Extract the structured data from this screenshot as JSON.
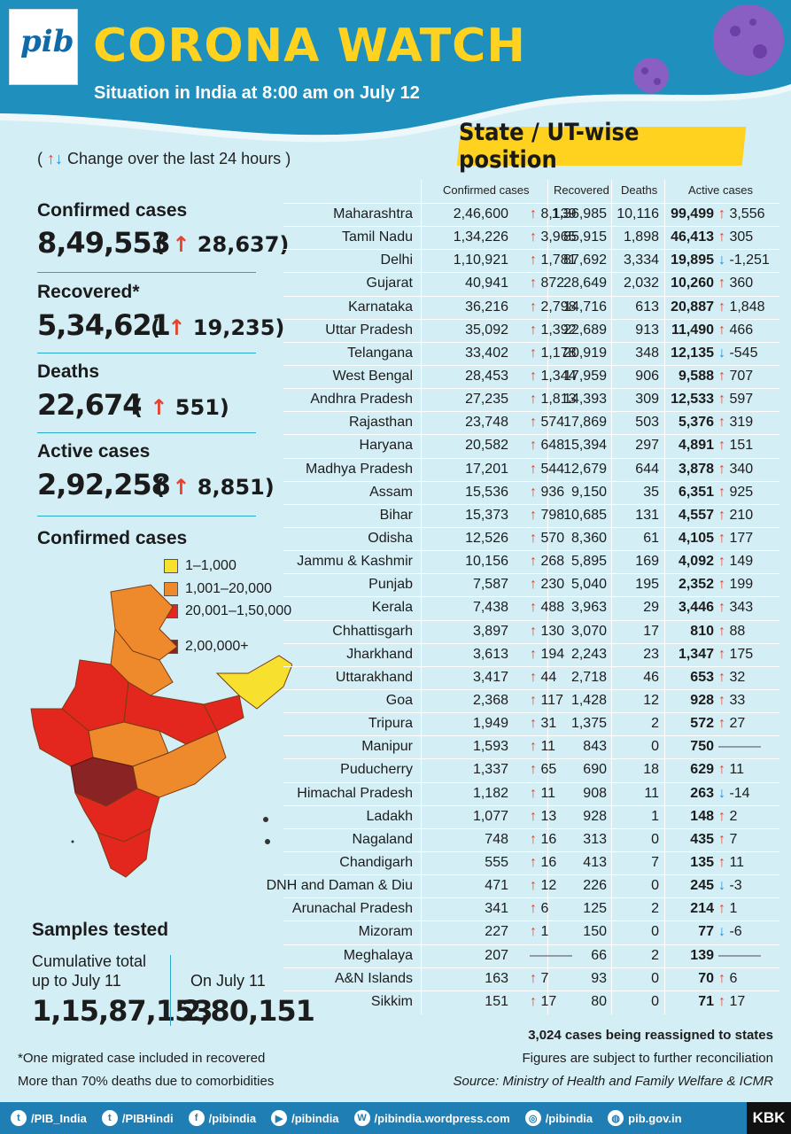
{
  "header": {
    "logo_text": "pib",
    "title": "CORONA WATCH",
    "subtitle": "Situation in India at 8:00 am on July 12",
    "section_banner": "State / UT-wise position"
  },
  "legend_change": {
    "open": "(",
    "up_glyph": "↑",
    "down_glyph": "↓",
    "text": "Change over the last 24 hours",
    "close": ")"
  },
  "summary": {
    "confirmed": {
      "label": "Confirmed cases",
      "value": "8,49,553",
      "change": "28,637"
    },
    "recovered": {
      "label": "Recovered*",
      "value": "5,34,621",
      "change": "19,235"
    },
    "deaths": {
      "label": "Deaths",
      "value": "22,674",
      "change": "551"
    },
    "active": {
      "label": "Active cases",
      "value": "2,92,258",
      "change": "8,851"
    }
  },
  "map_legend": {
    "title": "Confirmed cases",
    "items": [
      {
        "label": "1–1,000",
        "color": "#f7e02e"
      },
      {
        "label": "1,001–20,000",
        "color": "#ef8a2c"
      },
      {
        "label": "20,001–1,50,000",
        "color": "#e3271f"
      },
      {
        "label": "2,00,000+",
        "color": "#8a2323"
      }
    ]
  },
  "samples": {
    "title": "Samples tested",
    "cumulative_label_1": "Cumulative total",
    "cumulative_label_2": "up to July 11",
    "cumulative_value": "1,15,87,153",
    "day_label": "On July 11",
    "day_value": "2,80,151"
  },
  "table": {
    "headers": {
      "confirmed": "Confirmed cases",
      "recovered": "Recovered",
      "deaths": "Deaths",
      "active": "Active cases"
    },
    "rows": [
      {
        "state": "Maharashtra",
        "confirmed": "2,46,600",
        "conf_dir": "up",
        "conf_change": "8,139",
        "recovered": "1,36,985",
        "deaths": "10,116",
        "active": "99,499",
        "act_dir": "up",
        "act_change": "3,556"
      },
      {
        "state": "Tamil Nadu",
        "confirmed": "1,34,226",
        "conf_dir": "up",
        "conf_change": "3,965",
        "recovered": "85,915",
        "deaths": "1,898",
        "active": "46,413",
        "act_dir": "up",
        "act_change": "305"
      },
      {
        "state": "Delhi",
        "confirmed": "1,10,921",
        "conf_dir": "up",
        "conf_change": "1,781",
        "recovered": "87,692",
        "deaths": "3,334",
        "active": "19,895",
        "act_dir": "down",
        "act_change": "-1,251"
      },
      {
        "state": "Gujarat",
        "confirmed": "40,941",
        "conf_dir": "up",
        "conf_change": "872",
        "recovered": "28,649",
        "deaths": "2,032",
        "active": "10,260",
        "act_dir": "up",
        "act_change": "360"
      },
      {
        "state": "Karnataka",
        "confirmed": "36,216",
        "conf_dir": "up",
        "conf_change": "2,798",
        "recovered": "14,716",
        "deaths": "613",
        "active": "20,887",
        "act_dir": "up",
        "act_change": "1,848"
      },
      {
        "state": "Uttar Pradesh",
        "confirmed": "35,092",
        "conf_dir": "up",
        "conf_change": "1,392",
        "recovered": "22,689",
        "deaths": "913",
        "active": "11,490",
        "act_dir": "up",
        "act_change": "466"
      },
      {
        "state": "Telangana",
        "confirmed": "33,402",
        "conf_dir": "up",
        "conf_change": "1,178",
        "recovered": "20,919",
        "deaths": "348",
        "active": "12,135",
        "act_dir": "down",
        "act_change": "-545"
      },
      {
        "state": "West Bengal",
        "confirmed": "28,453",
        "conf_dir": "up",
        "conf_change": "1,344",
        "recovered": "17,959",
        "deaths": "906",
        "active": "9,588",
        "act_dir": "up",
        "act_change": "707"
      },
      {
        "state": "Andhra Pradesh",
        "confirmed": "27,235",
        "conf_dir": "up",
        "conf_change": "1,813",
        "recovered": "14,393",
        "deaths": "309",
        "active": "12,533",
        "act_dir": "up",
        "act_change": "597"
      },
      {
        "state": "Rajasthan",
        "confirmed": "23,748",
        "conf_dir": "up",
        "conf_change": "574",
        "recovered": "17,869",
        "deaths": "503",
        "active": "5,376",
        "act_dir": "up",
        "act_change": "319"
      },
      {
        "state": "Haryana",
        "confirmed": "20,582",
        "conf_dir": "up",
        "conf_change": "648",
        "recovered": "15,394",
        "deaths": "297",
        "active": "4,891",
        "act_dir": "up",
        "act_change": "151"
      },
      {
        "state": "Madhya Pradesh",
        "confirmed": "17,201",
        "conf_dir": "up",
        "conf_change": "544",
        "recovered": "12,679",
        "deaths": "644",
        "active": "3,878",
        "act_dir": "up",
        "act_change": "340"
      },
      {
        "state": "Assam",
        "confirmed": "15,536",
        "conf_dir": "up",
        "conf_change": "936",
        "recovered": "9,150",
        "deaths": "35",
        "active": "6,351",
        "act_dir": "up",
        "act_change": "925"
      },
      {
        "state": "Bihar",
        "confirmed": "15,373",
        "conf_dir": "up",
        "conf_change": "798",
        "recovered": "10,685",
        "deaths": "131",
        "active": "4,557",
        "act_dir": "up",
        "act_change": "210"
      },
      {
        "state": "Odisha",
        "confirmed": "12,526",
        "conf_dir": "up",
        "conf_change": "570",
        "recovered": "8,360",
        "deaths": "61",
        "active": "4,105",
        "act_dir": "up",
        "act_change": "177"
      },
      {
        "state": "Jammu & Kashmir",
        "confirmed": "10,156",
        "conf_dir": "up",
        "conf_change": "268",
        "recovered": "5,895",
        "deaths": "169",
        "active": "4,092",
        "act_dir": "up",
        "act_change": "149"
      },
      {
        "state": "Punjab",
        "confirmed": "7,587",
        "conf_dir": "up",
        "conf_change": "230",
        "recovered": "5,040",
        "deaths": "195",
        "active": "2,352",
        "act_dir": "up",
        "act_change": "199"
      },
      {
        "state": "Kerala",
        "confirmed": "7,438",
        "conf_dir": "up",
        "conf_change": "488",
        "recovered": "3,963",
        "deaths": "29",
        "active": "3,446",
        "act_dir": "up",
        "act_change": "343"
      },
      {
        "state": "Chhattisgarh",
        "confirmed": "3,897",
        "conf_dir": "up",
        "conf_change": "130",
        "recovered": "3,070",
        "deaths": "17",
        "active": "810",
        "act_dir": "up",
        "act_change": "88"
      },
      {
        "state": "Jharkhand",
        "confirmed": "3,613",
        "conf_dir": "up",
        "conf_change": "194",
        "recovered": "2,243",
        "deaths": "23",
        "active": "1,347",
        "act_dir": "up",
        "act_change": "175"
      },
      {
        "state": "Uttarakhand",
        "confirmed": "3,417",
        "conf_dir": "up",
        "conf_change": "44",
        "recovered": "2,718",
        "deaths": "46",
        "active": "653",
        "act_dir": "up",
        "act_change": "32"
      },
      {
        "state": "Goa",
        "confirmed": "2,368",
        "conf_dir": "up",
        "conf_change": "117",
        "recovered": "1,428",
        "deaths": "12",
        "active": "928",
        "act_dir": "up",
        "act_change": "33"
      },
      {
        "state": "Tripura",
        "confirmed": "1,949",
        "conf_dir": "up",
        "conf_change": "31",
        "recovered": "1,375",
        "deaths": "2",
        "active": "572",
        "act_dir": "up",
        "act_change": "27"
      },
      {
        "state": "Manipur",
        "confirmed": "1,593",
        "conf_dir": "up",
        "conf_change": "11",
        "recovered": "843",
        "deaths": "0",
        "active": "750",
        "act_dir": "none",
        "act_change": ""
      },
      {
        "state": "Puducherry",
        "confirmed": "1,337",
        "conf_dir": "up",
        "conf_change": "65",
        "recovered": "690",
        "deaths": "18",
        "active": "629",
        "act_dir": "up",
        "act_change": "11"
      },
      {
        "state": "Himachal Pradesh",
        "confirmed": "1,182",
        "conf_dir": "up",
        "conf_change": "11",
        "recovered": "908",
        "deaths": "11",
        "active": "263",
        "act_dir": "down",
        "act_change": "-14"
      },
      {
        "state": "Ladakh",
        "confirmed": "1,077",
        "conf_dir": "up",
        "conf_change": "13",
        "recovered": "928",
        "deaths": "1",
        "active": "148",
        "act_dir": "up",
        "act_change": "2"
      },
      {
        "state": "Nagaland",
        "confirmed": "748",
        "conf_dir": "up",
        "conf_change": "16",
        "recovered": "313",
        "deaths": "0",
        "active": "435",
        "act_dir": "up",
        "act_change": "7"
      },
      {
        "state": "Chandigarh",
        "confirmed": "555",
        "conf_dir": "up",
        "conf_change": "16",
        "recovered": "413",
        "deaths": "7",
        "active": "135",
        "act_dir": "up",
        "act_change": "11"
      },
      {
        "state": "DNH and Daman & Diu",
        "confirmed": "471",
        "conf_dir": "up",
        "conf_change": "12",
        "recovered": "226",
        "deaths": "0",
        "active": "245",
        "act_dir": "down",
        "act_change": "-3"
      },
      {
        "state": "Arunachal Pradesh",
        "confirmed": "341",
        "conf_dir": "up",
        "conf_change": "6",
        "recovered": "125",
        "deaths": "2",
        "active": "214",
        "act_dir": "up",
        "act_change": "1"
      },
      {
        "state": "Mizoram",
        "confirmed": "227",
        "conf_dir": "up",
        "conf_change": "1",
        "recovered": "150",
        "deaths": "0",
        "active": "77",
        "act_dir": "down",
        "act_change": "-6"
      },
      {
        "state": "Meghalaya",
        "confirmed": "207",
        "conf_dir": "none",
        "conf_change": "",
        "recovered": "66",
        "deaths": "2",
        "active": "139",
        "act_dir": "none",
        "act_change": ""
      },
      {
        "state": "A&N Islands",
        "confirmed": "163",
        "conf_dir": "up",
        "conf_change": "7",
        "recovered": "93",
        "deaths": "0",
        "active": "70",
        "act_dir": "up",
        "act_change": "6"
      },
      {
        "state": "Sikkim",
        "confirmed": "151",
        "conf_dir": "up",
        "conf_change": "17",
        "recovered": "80",
        "deaths": "0",
        "active": "71",
        "act_dir": "up",
        "act_change": "17"
      }
    ]
  },
  "notes": {
    "reassigned": "3,024 cases being reassigned to states",
    "reconciliation": "Figures are subject to further reconciliation",
    "source": "Source: Ministry of Health and Family Welfare & ICMR",
    "migrated": "*One migrated case included in recovered",
    "comorbidities": "More than 70% deaths due to comorbidities"
  },
  "footer": {
    "items": [
      {
        "icon": "twitter-icon",
        "glyph": "t",
        "label": "/PIB_India"
      },
      {
        "icon": "twitter-icon",
        "glyph": "t",
        "label": "/PIBHindi"
      },
      {
        "icon": "facebook-icon",
        "glyph": "f",
        "label": "/pibindia"
      },
      {
        "icon": "youtube-icon",
        "glyph": "▶",
        "label": "/pibindia"
      },
      {
        "icon": "wordpress-icon",
        "glyph": "W",
        "label": "/pibindia.wordpress.com"
      },
      {
        "icon": "instagram-icon",
        "glyph": "◎",
        "label": "/pibindia"
      },
      {
        "icon": "globe-icon",
        "glyph": "◍",
        "label": "pib.gov.in"
      }
    ],
    "brand": "KBK"
  }
}
